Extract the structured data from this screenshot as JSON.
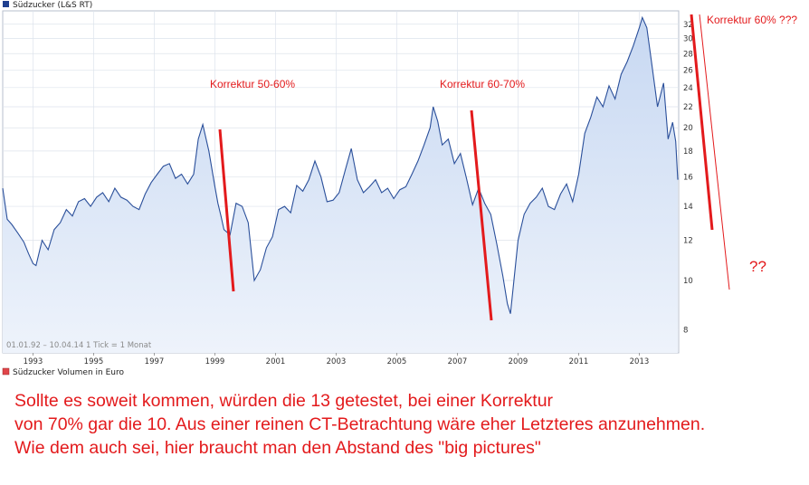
{
  "legend_main": "Südzucker (L&S RT)",
  "legend_volume": "Südzucker Volumen in Euro",
  "info_text": "01.01.92 – 10.04.14   1 Tick = 1 Monat",
  "annotations": {
    "correction_1": "Korrektur 50-60%",
    "correction_2": "Korrektur 60-70%",
    "correction_3": "Korrektur 60% ???",
    "question": "??"
  },
  "comment_lines": [
    "Sollte es soweit kommen, würden die 13 getestet, bei einer Korrektur",
    "von 70% gar die 10. Aus einer reinen CT-Betrachtung wäre eher Letzteres anzunehmen.",
    " Wie dem auch sei, hier braucht man den Abstand des \"big pictures\""
  ],
  "colors": {
    "line": "#2a4f9a",
    "area_top": "#c7d8f2",
    "area_bottom": "#eef3fb",
    "annotation": "#e31a1c",
    "grid": "#dde3ec",
    "legend_main_swatch": "#1f3f8f",
    "legend_volume_swatch": "#e0454a"
  },
  "chart_data": {
    "type": "area",
    "yscale": "log",
    "ylim": [
      7.2,
      34
    ],
    "xlim": [
      1992.0,
      2014.3
    ],
    "x_ticks": [
      "1993",
      "1995",
      "1997",
      "1999",
      "2001",
      "2003",
      "2005",
      "2007",
      "2009",
      "2011",
      "2013"
    ],
    "y_ticks": [
      8,
      10,
      12,
      14,
      16,
      18,
      20,
      22,
      24,
      26,
      28,
      30,
      32
    ],
    "series": [
      {
        "x": [
          1992.0,
          1992.15,
          1992.3,
          1992.5,
          1992.7,
          1992.85,
          1993.0,
          1993.1,
          1993.3,
          1993.5,
          1993.7,
          1993.9,
          1994.1,
          1994.3,
          1994.5,
          1994.7,
          1994.9,
          1995.1,
          1995.3,
          1995.5,
          1995.7,
          1995.9,
          1996.1,
          1996.3,
          1996.5,
          1996.7,
          1996.9,
          1997.1,
          1997.3,
          1997.5,
          1997.7,
          1997.9,
          1998.1,
          1998.3,
          1998.45,
          1998.6,
          1998.8,
          1999.0,
          1999.1,
          1999.2,
          1999.3,
          1999.5,
          1999.7,
          1999.9,
          2000.1,
          2000.3,
          2000.5,
          2000.7,
          2000.9,
          2001.1,
          2001.3,
          2001.5,
          2001.7,
          2001.9,
          2002.1,
          2002.3,
          2002.5,
          2002.7,
          2002.9,
          2003.1,
          2003.3,
          2003.5,
          2003.7,
          2003.9,
          2004.1,
          2004.3,
          2004.5,
          2004.7,
          2004.9,
          2005.1,
          2005.3,
          2005.5,
          2005.7,
          2005.9,
          2006.1,
          2006.2,
          2006.35,
          2006.5,
          2006.7,
          2006.9,
          2007.1,
          2007.3,
          2007.5,
          2007.7,
          2007.9,
          2008.1,
          2008.3,
          2008.5,
          2008.65,
          2008.75,
          2008.85,
          2009.0,
          2009.2,
          2009.4,
          2009.6,
          2009.8,
          2010.0,
          2010.2,
          2010.4,
          2010.6,
          2010.8,
          2011.0,
          2011.2,
          2011.4,
          2011.6,
          2011.8,
          2012.0,
          2012.2,
          2012.4,
          2012.6,
          2012.8,
          2013.0,
          2013.1,
          2013.25,
          2013.4,
          2013.6,
          2013.8,
          2013.95,
          2014.1,
          2014.2,
          2014.27
        ],
        "y": [
          15.2,
          13.2,
          12.9,
          12.4,
          11.9,
          11.3,
          10.8,
          10.7,
          12.0,
          11.5,
          12.6,
          13.0,
          13.8,
          13.4,
          14.3,
          14.5,
          14.0,
          14.6,
          14.9,
          14.3,
          15.2,
          14.6,
          14.4,
          14.0,
          13.8,
          14.8,
          15.6,
          16.2,
          16.8,
          17.0,
          15.9,
          16.2,
          15.5,
          16.2,
          19.0,
          20.3,
          18.0,
          15.3,
          14.2,
          13.4,
          12.6,
          12.3,
          14.2,
          14.0,
          13.0,
          10.0,
          10.5,
          11.6,
          12.2,
          13.8,
          14.0,
          13.6,
          15.4,
          15.0,
          15.8,
          17.2,
          16.0,
          14.3,
          14.4,
          14.9,
          16.5,
          18.2,
          15.8,
          14.9,
          15.3,
          15.8,
          14.9,
          15.2,
          14.5,
          15.1,
          15.3,
          16.2,
          17.2,
          18.5,
          20.0,
          22.0,
          20.6,
          18.5,
          19.0,
          17.0,
          17.8,
          15.9,
          14.1,
          15.2,
          14.2,
          13.5,
          11.8,
          10.2,
          9.0,
          8.6,
          9.8,
          12.0,
          13.5,
          14.2,
          14.6,
          15.2,
          14.0,
          13.8,
          14.8,
          15.5,
          14.3,
          16.2,
          19.5,
          21.0,
          23.0,
          22.0,
          24.2,
          22.8,
          25.5,
          27.0,
          29.0,
          31.5,
          33.0,
          31.5,
          27.0,
          22.0,
          24.5,
          19.0,
          20.5,
          18.8,
          15.8
        ]
      }
    ]
  }
}
